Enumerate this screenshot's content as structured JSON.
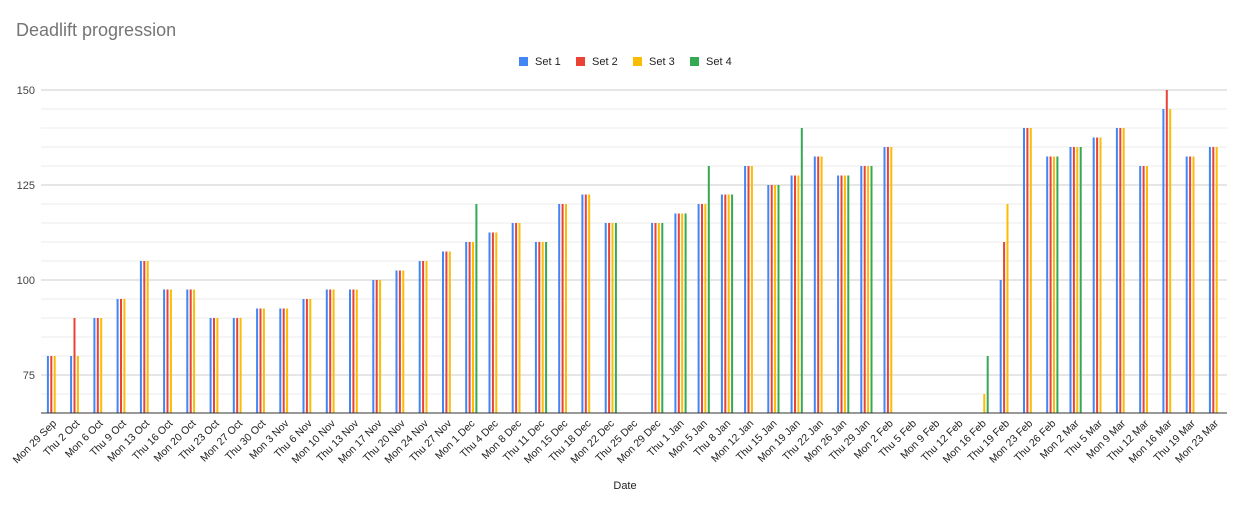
{
  "chart_data": {
    "type": "bar",
    "title": "Deadlift progression",
    "xlabel": "Date",
    "ylabel": "",
    "ylim": [
      65,
      150
    ],
    "yticks": [
      75,
      100,
      125,
      150
    ],
    "grid": true,
    "legend_position": "top",
    "categories": [
      "Mon 29 Sep",
      "Thu 2 Oct",
      "Mon 6 Oct",
      "Thu 9 Oct",
      "Mon 13 Oct",
      "Thu 16 Oct",
      "Mon 20 Oct",
      "Thu 23 Oct",
      "Mon 27 Oct",
      "Thu 30 Oct",
      "Mon 3 Nov",
      "Thu 6 Nov",
      "Mon 10 Nov",
      "Thu 13 Nov",
      "Mon 17 Nov",
      "Thu 20 Nov",
      "Mon 24 Nov",
      "Thu 27 Nov",
      "Mon 1 Dec",
      "Thu 4 Dec",
      "Mon 8 Dec",
      "Thu 11 Dec",
      "Mon 15 Dec",
      "Thu 18 Dec",
      "Mon 22 Dec",
      "Thu 25 Dec",
      "Mon 29 Dec",
      "Thu 1 Jan",
      "Mon 5 Jan",
      "Thu 8 Jan",
      "Mon 12 Jan",
      "Thu 15 Jan",
      "Mon 19 Jan",
      "Thu 22 Jan",
      "Mon 26 Jan",
      "Thu 29 Jan",
      "Mon 2 Feb",
      "Thu 5 Feb",
      "Mon 9 Feb",
      "Thu 12 Feb",
      "Mon 16 Feb",
      "Thu 19 Feb",
      "Mon 23 Feb",
      "Thu 26 Feb",
      "Mon 2 Mar",
      "Thu 5 Mar",
      "Mon 9 Mar",
      "Thu 12 Mar",
      "Mon 16 Mar",
      "Thu 19 Mar",
      "Mon 23 Mar"
    ],
    "series": [
      {
        "name": "Set 1",
        "color": "#4285f4",
        "values": [
          80,
          80,
          90,
          95,
          105,
          97.5,
          97.5,
          90,
          90,
          92.5,
          92.5,
          95,
          97.5,
          97.5,
          100,
          102.5,
          105,
          107.5,
          110,
          112.5,
          115,
          110,
          120,
          122.5,
          115,
          null,
          115,
          117.5,
          120,
          122.5,
          130,
          125,
          127.5,
          132.5,
          127.5,
          130,
          135,
          null,
          null,
          null,
          null,
          100,
          140,
          132.5,
          135,
          137.5,
          140,
          130,
          145,
          132.5,
          135
        ]
      },
      {
        "name": "Set 2",
        "color": "#ea4335",
        "values": [
          80,
          90,
          90,
          95,
          105,
          97.5,
          97.5,
          90,
          90,
          92.5,
          92.5,
          95,
          97.5,
          97.5,
          100,
          102.5,
          105,
          107.5,
          110,
          112.5,
          115,
          110,
          120,
          122.5,
          115,
          null,
          115,
          117.5,
          120,
          122.5,
          130,
          125,
          127.5,
          132.5,
          127.5,
          130,
          135,
          null,
          null,
          null,
          null,
          110,
          140,
          132.5,
          135,
          137.5,
          140,
          130,
          150,
          132.5,
          135
        ]
      },
      {
        "name": "Set 3",
        "color": "#fbbc04",
        "values": [
          80,
          80,
          90,
          95,
          105,
          97.5,
          97.5,
          90,
          90,
          92.5,
          92.5,
          95,
          97.5,
          97.5,
          100,
          102.5,
          105,
          107.5,
          110,
          112.5,
          115,
          110,
          120,
          122.5,
          115,
          null,
          115,
          117.5,
          120,
          122.5,
          130,
          125,
          127.5,
          132.5,
          127.5,
          130,
          135,
          null,
          null,
          null,
          70,
          120,
          140,
          132.5,
          135,
          137.5,
          140,
          130,
          145,
          132.5,
          135
        ]
      },
      {
        "name": "Set 4",
        "color": "#34a853",
        "values": [
          null,
          null,
          null,
          null,
          null,
          null,
          null,
          null,
          null,
          null,
          null,
          null,
          null,
          null,
          null,
          null,
          null,
          null,
          120,
          null,
          null,
          110,
          null,
          null,
          115,
          null,
          115,
          117.5,
          130,
          122.5,
          null,
          125,
          140,
          null,
          127.5,
          130,
          null,
          null,
          null,
          null,
          80,
          null,
          null,
          132.5,
          135,
          null,
          null,
          null,
          null,
          null,
          null
        ]
      }
    ]
  }
}
